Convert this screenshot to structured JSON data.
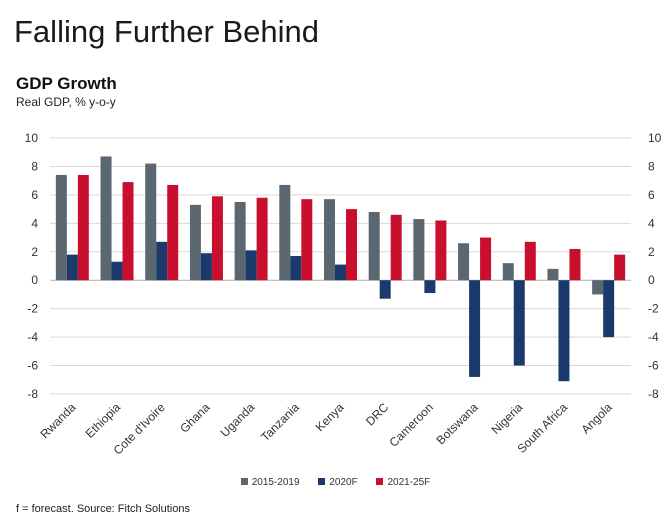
{
  "page": {
    "headline": "Falling Further Behind",
    "footnote": "f = forecast. Source: Fitch Solutions"
  },
  "chart_data": {
    "type": "bar",
    "title": "GDP Growth",
    "subtitle": "Real GDP, % y-o-y",
    "xlabel": "",
    "ylabel": "",
    "ylim": [
      -8,
      10
    ],
    "yticks": [
      10,
      8,
      6,
      4,
      2,
      0,
      -2,
      -4,
      -6,
      -8
    ],
    "grid": true,
    "dual_y_axis": true,
    "legend_position": "bottom",
    "categories": [
      "Rwanda",
      "Ethiopia",
      "Cote d'Ivoire",
      "Ghana",
      "Uganda",
      "Tanzania",
      "Kenya",
      "DRC",
      "Cameroon",
      "Botswana",
      "Nigeria",
      "South Africa",
      "Angola"
    ],
    "series": [
      {
        "name": "2015-2019",
        "color": "#5a6670",
        "values": [
          7.4,
          8.7,
          8.2,
          5.3,
          5.5,
          6.7,
          5.7,
          4.8,
          4.3,
          2.6,
          1.2,
          0.8,
          -1.0
        ]
      },
      {
        "name": "2020F",
        "color": "#1b3a6b",
        "values": [
          1.8,
          1.3,
          2.7,
          1.9,
          2.1,
          1.7,
          1.1,
          -1.3,
          -0.9,
          -6.8,
          -6.0,
          -7.1,
          -4.0
        ]
      },
      {
        "name": "2021-25F",
        "color": "#c8102e",
        "values": [
          7.4,
          6.9,
          6.7,
          5.9,
          5.8,
          5.7,
          5.0,
          4.6,
          4.2,
          3.0,
          2.7,
          2.2,
          1.8
        ]
      }
    ]
  }
}
